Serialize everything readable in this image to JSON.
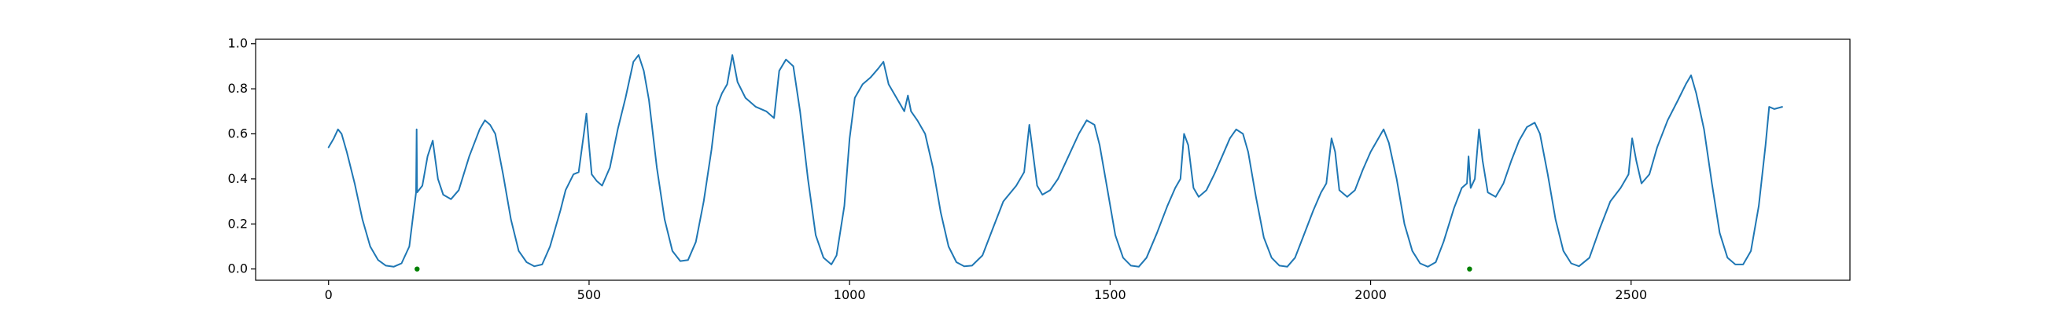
{
  "chart_data": {
    "type": "line",
    "title": "",
    "xlabel": "",
    "ylabel": "",
    "xlim": [
      -140,
      2920
    ],
    "ylim": [
      -0.05,
      1.02
    ],
    "xticks": [
      0,
      500,
      1000,
      1500,
      2000,
      2500
    ],
    "yticks": [
      0.0,
      0.2,
      0.4,
      0.6,
      0.8,
      1.0
    ],
    "xtick_labels": [
      "0",
      "500",
      "1000",
      "1500",
      "2000",
      "2500"
    ],
    "ytick_labels": [
      "0.0",
      "0.2",
      "0.4",
      "0.6",
      "0.8",
      "1.0"
    ],
    "grid": false,
    "legend": "none",
    "series": [
      {
        "color": "#1f77b4",
        "points": [
          [
            0,
            0.54
          ],
          [
            10,
            0.58
          ],
          [
            18,
            0.62
          ],
          [
            25,
            0.6
          ],
          [
            35,
            0.52
          ],
          [
            50,
            0.38
          ],
          [
            65,
            0.22
          ],
          [
            80,
            0.1
          ],
          [
            95,
            0.04
          ],
          [
            110,
            0.015
          ],
          [
            125,
            0.01
          ],
          [
            140,
            0.025
          ],
          [
            155,
            0.1
          ],
          [
            163,
            0.25
          ],
          [
            168,
            0.34
          ],
          [
            169,
            0.62
          ],
          [
            170,
            0.34
          ],
          [
            180,
            0.37
          ],
          [
            190,
            0.5
          ],
          [
            200,
            0.57
          ],
          [
            210,
            0.4
          ],
          [
            220,
            0.33
          ],
          [
            235,
            0.31
          ],
          [
            250,
            0.35
          ],
          [
            270,
            0.5
          ],
          [
            290,
            0.62
          ],
          [
            300,
            0.66
          ],
          [
            310,
            0.64
          ],
          [
            320,
            0.6
          ],
          [
            335,
            0.42
          ],
          [
            350,
            0.22
          ],
          [
            365,
            0.08
          ],
          [
            380,
            0.03
          ],
          [
            395,
            0.012
          ],
          [
            410,
            0.02
          ],
          [
            425,
            0.1
          ],
          [
            445,
            0.26
          ],
          [
            455,
            0.35
          ],
          [
            470,
            0.42
          ],
          [
            480,
            0.43
          ],
          [
            490,
            0.6
          ],
          [
            495,
            0.69
          ],
          [
            500,
            0.55
          ],
          [
            505,
            0.42
          ],
          [
            515,
            0.39
          ],
          [
            525,
            0.37
          ],
          [
            540,
            0.45
          ],
          [
            555,
            0.62
          ],
          [
            570,
            0.76
          ],
          [
            585,
            0.92
          ],
          [
            595,
            0.95
          ],
          [
            605,
            0.88
          ],
          [
            615,
            0.75
          ],
          [
            630,
            0.45
          ],
          [
            645,
            0.22
          ],
          [
            660,
            0.08
          ],
          [
            675,
            0.035
          ],
          [
            690,
            0.04
          ],
          [
            705,
            0.12
          ],
          [
            720,
            0.3
          ],
          [
            735,
            0.53
          ],
          [
            745,
            0.72
          ],
          [
            755,
            0.78
          ],
          [
            765,
            0.82
          ],
          [
            775,
            0.95
          ],
          [
            785,
            0.83
          ],
          [
            800,
            0.76
          ],
          [
            820,
            0.72
          ],
          [
            840,
            0.7
          ],
          [
            855,
            0.67
          ],
          [
            865,
            0.88
          ],
          [
            878,
            0.93
          ],
          [
            892,
            0.9
          ],
          [
            905,
            0.7
          ],
          [
            920,
            0.4
          ],
          [
            935,
            0.15
          ],
          [
            950,
            0.05
          ],
          [
            965,
            0.02
          ],
          [
            975,
            0.06
          ],
          [
            990,
            0.28
          ],
          [
            1000,
            0.58
          ],
          [
            1010,
            0.76
          ],
          [
            1025,
            0.82
          ],
          [
            1040,
            0.85
          ],
          [
            1055,
            0.89
          ],
          [
            1065,
            0.92
          ],
          [
            1075,
            0.82
          ],
          [
            1090,
            0.76
          ],
          [
            1105,
            0.7
          ],
          [
            1112,
            0.77
          ],
          [
            1118,
            0.7
          ],
          [
            1130,
            0.66
          ],
          [
            1145,
            0.6
          ],
          [
            1160,
            0.45
          ],
          [
            1175,
            0.25
          ],
          [
            1190,
            0.1
          ],
          [
            1205,
            0.03
          ],
          [
            1220,
            0.012
          ],
          [
            1235,
            0.015
          ],
          [
            1255,
            0.06
          ],
          [
            1275,
            0.18
          ],
          [
            1295,
            0.3
          ],
          [
            1320,
            0.37
          ],
          [
            1335,
            0.43
          ],
          [
            1345,
            0.64
          ],
          [
            1350,
            0.55
          ],
          [
            1360,
            0.37
          ],
          [
            1370,
            0.33
          ],
          [
            1385,
            0.35
          ],
          [
            1400,
            0.4
          ],
          [
            1420,
            0.5
          ],
          [
            1440,
            0.6
          ],
          [
            1455,
            0.66
          ],
          [
            1470,
            0.64
          ],
          [
            1480,
            0.55
          ],
          [
            1495,
            0.35
          ],
          [
            1510,
            0.15
          ],
          [
            1525,
            0.05
          ],
          [
            1540,
            0.015
          ],
          [
            1555,
            0.01
          ],
          [
            1570,
            0.05
          ],
          [
            1590,
            0.16
          ],
          [
            1610,
            0.28
          ],
          [
            1625,
            0.36
          ],
          [
            1635,
            0.4
          ],
          [
            1642,
            0.6
          ],
          [
            1650,
            0.55
          ],
          [
            1660,
            0.36
          ],
          [
            1670,
            0.32
          ],
          [
            1685,
            0.35
          ],
          [
            1700,
            0.42
          ],
          [
            1715,
            0.5
          ],
          [
            1730,
            0.58
          ],
          [
            1742,
            0.62
          ],
          [
            1755,
            0.6
          ],
          [
            1765,
            0.52
          ],
          [
            1780,
            0.32
          ],
          [
            1795,
            0.14
          ],
          [
            1810,
            0.05
          ],
          [
            1825,
            0.015
          ],
          [
            1840,
            0.01
          ],
          [
            1855,
            0.05
          ],
          [
            1870,
            0.14
          ],
          [
            1890,
            0.26
          ],
          [
            1905,
            0.34
          ],
          [
            1915,
            0.38
          ],
          [
            1925,
            0.58
          ],
          [
            1932,
            0.52
          ],
          [
            1940,
            0.35
          ],
          [
            1955,
            0.32
          ],
          [
            1970,
            0.35
          ],
          [
            1985,
            0.44
          ],
          [
            2000,
            0.52
          ],
          [
            2015,
            0.58
          ],
          [
            2025,
            0.62
          ],
          [
            2035,
            0.56
          ],
          [
            2050,
            0.4
          ],
          [
            2065,
            0.2
          ],
          [
            2080,
            0.08
          ],
          [
            2095,
            0.025
          ],
          [
            2110,
            0.01
          ],
          [
            2125,
            0.03
          ],
          [
            2140,
            0.12
          ],
          [
            2160,
            0.27
          ],
          [
            2175,
            0.36
          ],
          [
            2185,
            0.38
          ],
          [
            2188,
            0.5
          ],
          [
            2192,
            0.36
          ],
          [
            2200,
            0.4
          ],
          [
            2208,
            0.62
          ],
          [
            2215,
            0.48
          ],
          [
            2225,
            0.34
          ],
          [
            2240,
            0.32
          ],
          [
            2255,
            0.38
          ],
          [
            2270,
            0.48
          ],
          [
            2285,
            0.57
          ],
          [
            2300,
            0.63
          ],
          [
            2315,
            0.65
          ],
          [
            2325,
            0.6
          ],
          [
            2340,
            0.42
          ],
          [
            2355,
            0.22
          ],
          [
            2370,
            0.08
          ],
          [
            2385,
            0.025
          ],
          [
            2400,
            0.012
          ],
          [
            2420,
            0.05
          ],
          [
            2440,
            0.18
          ],
          [
            2460,
            0.3
          ],
          [
            2480,
            0.36
          ],
          [
            2495,
            0.42
          ],
          [
            2502,
            0.58
          ],
          [
            2510,
            0.48
          ],
          [
            2520,
            0.38
          ],
          [
            2535,
            0.42
          ],
          [
            2550,
            0.54
          ],
          [
            2570,
            0.66
          ],
          [
            2590,
            0.75
          ],
          [
            2605,
            0.82
          ],
          [
            2615,
            0.86
          ],
          [
            2625,
            0.78
          ],
          [
            2640,
            0.62
          ],
          [
            2655,
            0.38
          ],
          [
            2670,
            0.16
          ],
          [
            2685,
            0.05
          ],
          [
            2700,
            0.02
          ],
          [
            2715,
            0.02
          ],
          [
            2730,
            0.08
          ],
          [
            2745,
            0.28
          ],
          [
            2758,
            0.55
          ],
          [
            2765,
            0.72
          ],
          [
            2775,
            0.71
          ],
          [
            2790,
            0.72
          ]
        ]
      }
    ],
    "markers": {
      "color": "#008000",
      "points": [
        [
          170,
          0.0
        ],
        [
          2190,
          0.0
        ]
      ]
    }
  }
}
